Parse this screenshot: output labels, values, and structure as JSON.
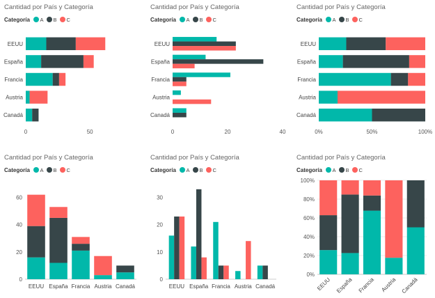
{
  "legend": {
    "title": "Categoría",
    "entries": [
      {
        "name": "A",
        "color": "#01B8AA"
      },
      {
        "name": "B",
        "color": "#374649"
      },
      {
        "name": "C",
        "color": "#FD625E"
      }
    ]
  },
  "chart_data": [
    {
      "type": "bar",
      "orientation": "horizontal",
      "mode": "stacked",
      "title": "Cantidad por País y Categoría",
      "categories": [
        "EEUU",
        "España",
        "Francia",
        "Austria",
        "Canadá"
      ],
      "series": [
        {
          "name": "A",
          "values": [
            16,
            12,
            21,
            3,
            5
          ]
        },
        {
          "name": "B",
          "values": [
            23,
            33,
            5,
            0,
            5
          ]
        },
        {
          "name": "C",
          "values": [
            23,
            8,
            5,
            14,
            0
          ]
        }
      ],
      "ticks": [
        0,
        50
      ],
      "tick_labels": [
        "0",
        "50"
      ],
      "xlim": [
        0,
        70
      ]
    },
    {
      "type": "bar",
      "orientation": "horizontal",
      "mode": "clustered",
      "title": "Cantidad por País y Categoría",
      "categories": [
        "EEUU",
        "España",
        "Francia",
        "Austria",
        "Canadá"
      ],
      "series": [
        {
          "name": "A",
          "values": [
            16,
            12,
            21,
            3,
            5
          ]
        },
        {
          "name": "B",
          "values": [
            23,
            33,
            5,
            0,
            5
          ]
        },
        {
          "name": "C",
          "values": [
            23,
            8,
            5,
            14,
            0
          ]
        }
      ],
      "ticks": [
        0,
        20,
        40
      ],
      "tick_labels": [
        "0",
        "20",
        "40"
      ],
      "xlim": [
        0,
        40
      ]
    },
    {
      "type": "bar",
      "orientation": "horizontal",
      "mode": "percent",
      "title": "Cantidad por País y Categoría",
      "categories": [
        "EEUU",
        "España",
        "Francia",
        "Austria",
        "Canadá"
      ],
      "series": [
        {
          "name": "A",
          "values": [
            16,
            12,
            21,
            3,
            5
          ]
        },
        {
          "name": "B",
          "values": [
            23,
            33,
            5,
            0,
            5
          ]
        },
        {
          "name": "C",
          "values": [
            23,
            8,
            5,
            14,
            0
          ]
        }
      ],
      "ticks": [
        0,
        50,
        100
      ],
      "tick_labels": [
        "0%",
        "50%",
        "100%"
      ],
      "xlim": [
        0,
        100
      ]
    },
    {
      "type": "bar",
      "orientation": "vertical",
      "mode": "stacked",
      "title": "Cantidad por País y Categoría",
      "categories": [
        "EEUU",
        "España",
        "Francia",
        "Austria",
        "Canadá"
      ],
      "series": [
        {
          "name": "A",
          "values": [
            16,
            12,
            21,
            3,
            5
          ]
        },
        {
          "name": "B",
          "values": [
            23,
            33,
            5,
            0,
            5
          ]
        },
        {
          "name": "C",
          "values": [
            23,
            8,
            5,
            14,
            0
          ]
        }
      ],
      "ticks": [
        0,
        20,
        40,
        60
      ],
      "tick_labels": [
        "0",
        "20",
        "40",
        "60"
      ],
      "ylim": [
        0,
        70
      ]
    },
    {
      "type": "bar",
      "orientation": "vertical",
      "mode": "clustered",
      "title": "Cantidad por País y Categoría",
      "categories": [
        "EEUU",
        "España",
        "Francia",
        "Austria",
        "Canadá"
      ],
      "series": [
        {
          "name": "A",
          "values": [
            16,
            12,
            21,
            3,
            5
          ]
        },
        {
          "name": "B",
          "values": [
            23,
            33,
            5,
            0,
            5
          ]
        },
        {
          "name": "C",
          "values": [
            23,
            8,
            5,
            14,
            0
          ]
        }
      ],
      "ticks": [
        0,
        10,
        20,
        30
      ],
      "tick_labels": [
        "0",
        "10",
        "20",
        "30"
      ],
      "ylim": [
        0,
        35
      ]
    },
    {
      "type": "bar",
      "orientation": "vertical",
      "mode": "percent",
      "title": "Cantidad por País y Categoría",
      "categories": [
        "EEUU",
        "España",
        "Francia",
        "Austria",
        "Canadá"
      ],
      "series": [
        {
          "name": "A",
          "values": [
            16,
            12,
            21,
            3,
            5
          ]
        },
        {
          "name": "B",
          "values": [
            23,
            33,
            5,
            0,
            5
          ]
        },
        {
          "name": "C",
          "values": [
            23,
            8,
            5,
            14,
            0
          ]
        }
      ],
      "ticks": [
        0,
        20,
        40,
        60,
        80,
        100
      ],
      "tick_labels": [
        "0%",
        "20%",
        "40%",
        "60%",
        "80%",
        "100%"
      ],
      "ylim": [
        0,
        100
      ]
    }
  ]
}
